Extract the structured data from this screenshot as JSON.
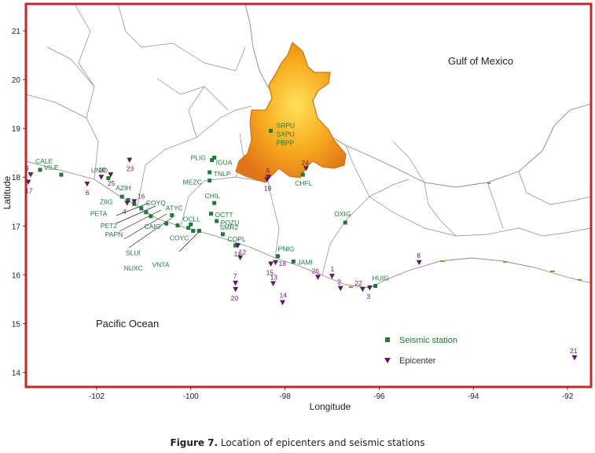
{
  "axes": {
    "xlabel": "Longitude",
    "ylabel": "Latitude",
    "xlim": [
      -103.5,
      -91.5
    ],
    "ylim": [
      13.7,
      21.55
    ],
    "xticks": [
      -102,
      -100,
      -98,
      -96,
      -94,
      -92
    ],
    "xtick_labels": [
      "-102",
      "-100",
      "-98",
      "-96",
      "-94",
      "-92"
    ],
    "yticks": [
      14,
      15,
      16,
      17,
      18,
      19,
      20,
      21
    ],
    "ytick_labels": [
      "14",
      "15",
      "16",
      "17",
      "18",
      "19",
      "20",
      "21"
    ]
  },
  "regions": {
    "gulf": "Gulf of Mexico",
    "pacific": "Pacific Ocean"
  },
  "stations": [
    {
      "name": "CALE",
      "lon": -103.2,
      "lat": 18.15
    },
    {
      "name": "VILE",
      "lon": -102.75,
      "lat": 18.05
    },
    {
      "name": "UNIO",
      "lon": -101.75,
      "lat": 17.98
    },
    {
      "name": "AZIH",
      "lon": -101.46,
      "lat": 17.6
    },
    {
      "name": "ZIIG",
      "lon": -101.33,
      "lat": 17.53
    },
    {
      "name": "PETA",
      "lon": -101.2,
      "lat": 17.45
    },
    {
      "name": "COYQ",
      "lon": -101.05,
      "lat": 17.36
    },
    {
      "name": "PET2",
      "lon": -100.95,
      "lat": 17.28
    },
    {
      "name": "PAPN",
      "lon": -100.85,
      "lat": 17.2
    },
    {
      "name": "ATYC",
      "lon": -100.4,
      "lat": 17.22
    },
    {
      "name": "CAIG",
      "lon": -100.52,
      "lat": 17.05
    },
    {
      "name": "SLUI",
      "lon": -100.28,
      "lat": 17.01
    },
    {
      "name": "OCLL",
      "lon": -100.0,
      "lat": 17.03
    },
    {
      "name": "NUXC",
      "lon": -100.05,
      "lat": 16.96
    },
    {
      "name": "COYC",
      "lon": -99.95,
      "lat": 16.9
    },
    {
      "name": "VNTA",
      "lon": -99.82,
      "lat": 16.9
    },
    {
      "name": "PLIG",
      "lon": -99.5,
      "lat": 18.4
    },
    {
      "name": "IGUA",
      "lon": -99.55,
      "lat": 18.35
    },
    {
      "name": "TNLP",
      "lon": -99.6,
      "lat": 18.1
    },
    {
      "name": "MEZC",
      "lon": -99.6,
      "lat": 17.93
    },
    {
      "name": "CHIL",
      "lon": -99.5,
      "lat": 17.47
    },
    {
      "name": "OCTT",
      "lon": -99.57,
      "lat": 17.25
    },
    {
      "name": "POZU",
      "lon": -99.45,
      "lat": 17.1
    },
    {
      "name": "SMR2",
      "lon": -99.32,
      "lat": 16.83
    },
    {
      "name": "COPL",
      "lon": -99.05,
      "lat": 16.6
    },
    {
      "name": "SRPU",
      "lon": -98.3,
      "lat": 18.95
    },
    {
      "name": "SXPU",
      "lon": -98.3,
      "lat": 18.95
    },
    {
      "name": "PBPP",
      "lon": -98.3,
      "lat": 18.95
    },
    {
      "name": "CHFL",
      "lon": -97.62,
      "lat": 18.05
    },
    {
      "name": "PNIG",
      "lon": -98.15,
      "lat": 16.38
    },
    {
      "name": "JAMI",
      "lon": -97.82,
      "lat": 16.27
    },
    {
      "name": "OXIG",
      "lon": -96.72,
      "lat": 17.07
    },
    {
      "name": "HUIG",
      "lon": -96.08,
      "lat": 15.77
    }
  ],
  "epicenters": [
    {
      "id": "1",
      "lon": -97.0,
      "lat": 15.97
    },
    {
      "id": "2",
      "lon": -96.82,
      "lat": 15.72
    },
    {
      "id": "3",
      "lon": -96.2,
      "lat": 15.73
    },
    {
      "id": "4",
      "lon": -101.35,
      "lat": 17.47
    },
    {
      "id": "5",
      "lon": -98.35,
      "lat": 18.0
    },
    {
      "id": "6",
      "lon": -102.2,
      "lat": 17.86
    },
    {
      "id": "7",
      "lon": -99.05,
      "lat": 15.83
    },
    {
      "id": "8",
      "lon": -95.15,
      "lat": 16.25
    },
    {
      "id": "9",
      "lon": -103.4,
      "lat": 18.05
    },
    {
      "id": "10",
      "lon": -101.9,
      "lat": 18.0
    },
    {
      "id": "11",
      "lon": -99.0,
      "lat": 16.6
    },
    {
      "id": "12",
      "lon": -98.95,
      "lat": 16.35
    },
    {
      "id": "13",
      "lon": -98.25,
      "lat": 15.82
    },
    {
      "id": "14",
      "lon": -98.05,
      "lat": 15.43
    },
    {
      "id": "15",
      "lon": -98.3,
      "lat": 16.22
    },
    {
      "id": "16",
      "lon": -101.2,
      "lat": 17.5
    },
    {
      "id": "17",
      "lon": -103.45,
      "lat": 17.9
    },
    {
      "id": "18",
      "lon": -98.2,
      "lat": 16.25
    },
    {
      "id": "19",
      "lon": -98.38,
      "lat": 17.95
    },
    {
      "id": "20",
      "lon": -99.05,
      "lat": 15.7
    },
    {
      "id": "21",
      "lon": -91.85,
      "lat": 14.3
    },
    {
      "id": "22",
      "lon": -96.35,
      "lat": 15.7
    },
    {
      "id": "23",
      "lon": -101.3,
      "lat": 18.35
    },
    {
      "id": "24",
      "lon": -97.55,
      "lat": 18.18
    },
    {
      "id": "25",
      "lon": -101.7,
      "lat": 18.05
    },
    {
      "id": "26",
      "lon": -97.3,
      "lat": 15.95
    }
  ],
  "legend": {
    "station": "Seismic station",
    "epicenter": "Epicenter"
  },
  "colors": {
    "station": "#1f7a3a",
    "epicenter": "#5a1e62",
    "frame": "#c0282e",
    "state_fill": "#f4a21e",
    "state_edge": "#c8781a",
    "borders": "#8a8a8a"
  },
  "caption": {
    "label": "Figure 7.",
    "text": "Location of epicenters and seismic stations"
  }
}
